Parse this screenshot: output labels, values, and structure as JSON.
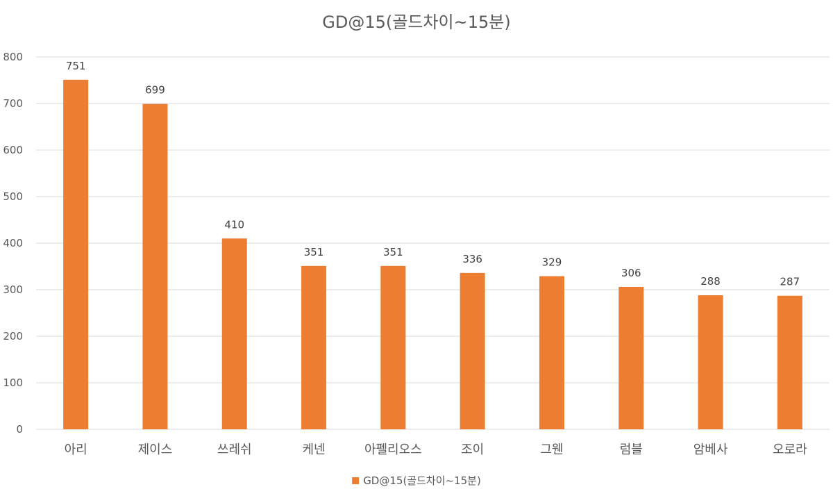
{
  "chart_data": {
    "type": "bar",
    "title": "GD@15(골드차이~15분)",
    "xlabel": "",
    "ylabel": "",
    "categories": [
      "아리",
      "제이스",
      "쓰레쉬",
      "케넨",
      "아펠리오스",
      "조이",
      "그웬",
      "럼블",
      "암베사",
      "오로라"
    ],
    "series": [
      {
        "name": "GD@15(골드차이~15분)",
        "values": [
          751,
          699,
          410,
          351,
          351,
          336,
          329,
          306,
          288,
          287
        ],
        "color": "#ED7D31"
      }
    ],
    "ylim": [
      0,
      800
    ],
    "yticks": [
      "0",
      "100",
      "200",
      "300",
      "400",
      "500",
      "600",
      "700",
      "800"
    ],
    "grid": true,
    "legend_position": "bottom",
    "data_labels": true
  }
}
